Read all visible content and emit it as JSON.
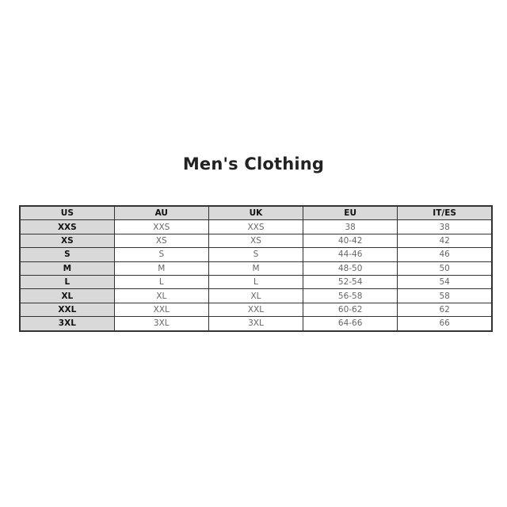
{
  "title": "Men's Clothing",
  "table": {
    "headers": [
      "US",
      "AU",
      "UK",
      "EU",
      "IT/ES"
    ],
    "rows": [
      [
        "XXS",
        "XXS",
        "XXS",
        "38",
        "38"
      ],
      [
        "XS",
        "XS",
        "XS",
        "40-42",
        "42"
      ],
      [
        "S",
        "S",
        "S",
        "44-46",
        "46"
      ],
      [
        "M",
        "M",
        "M",
        "48-50",
        "50"
      ],
      [
        "L",
        "L",
        "L",
        "52-54",
        "54"
      ],
      [
        "XL",
        "XL",
        "XL",
        "56-58",
        "58"
      ],
      [
        "XXL",
        "XXL",
        "XXL",
        "60-62",
        "62"
      ],
      [
        "3XL",
        "3XL",
        "3XL",
        "64-66",
        "66"
      ]
    ]
  }
}
